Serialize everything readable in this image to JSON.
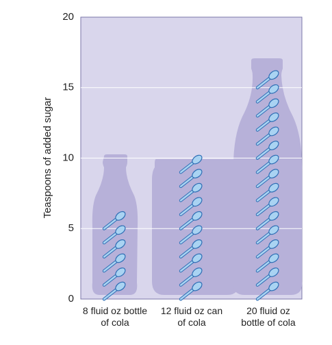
{
  "chart_data": {
    "type": "pictograph",
    "y_label": "Teaspoons of added sugar",
    "categories": [
      "8 fluid oz bottle of cola",
      "12 fluid oz can of cola",
      "20 fluid oz bottle of cola"
    ],
    "values": [
      6,
      10,
      16
    ],
    "color": "#a9d3f2",
    "ylim": [
      0,
      20
    ],
    "yticks": [
      0,
      5,
      10,
      15,
      20
    ],
    "grid": true
  }
}
